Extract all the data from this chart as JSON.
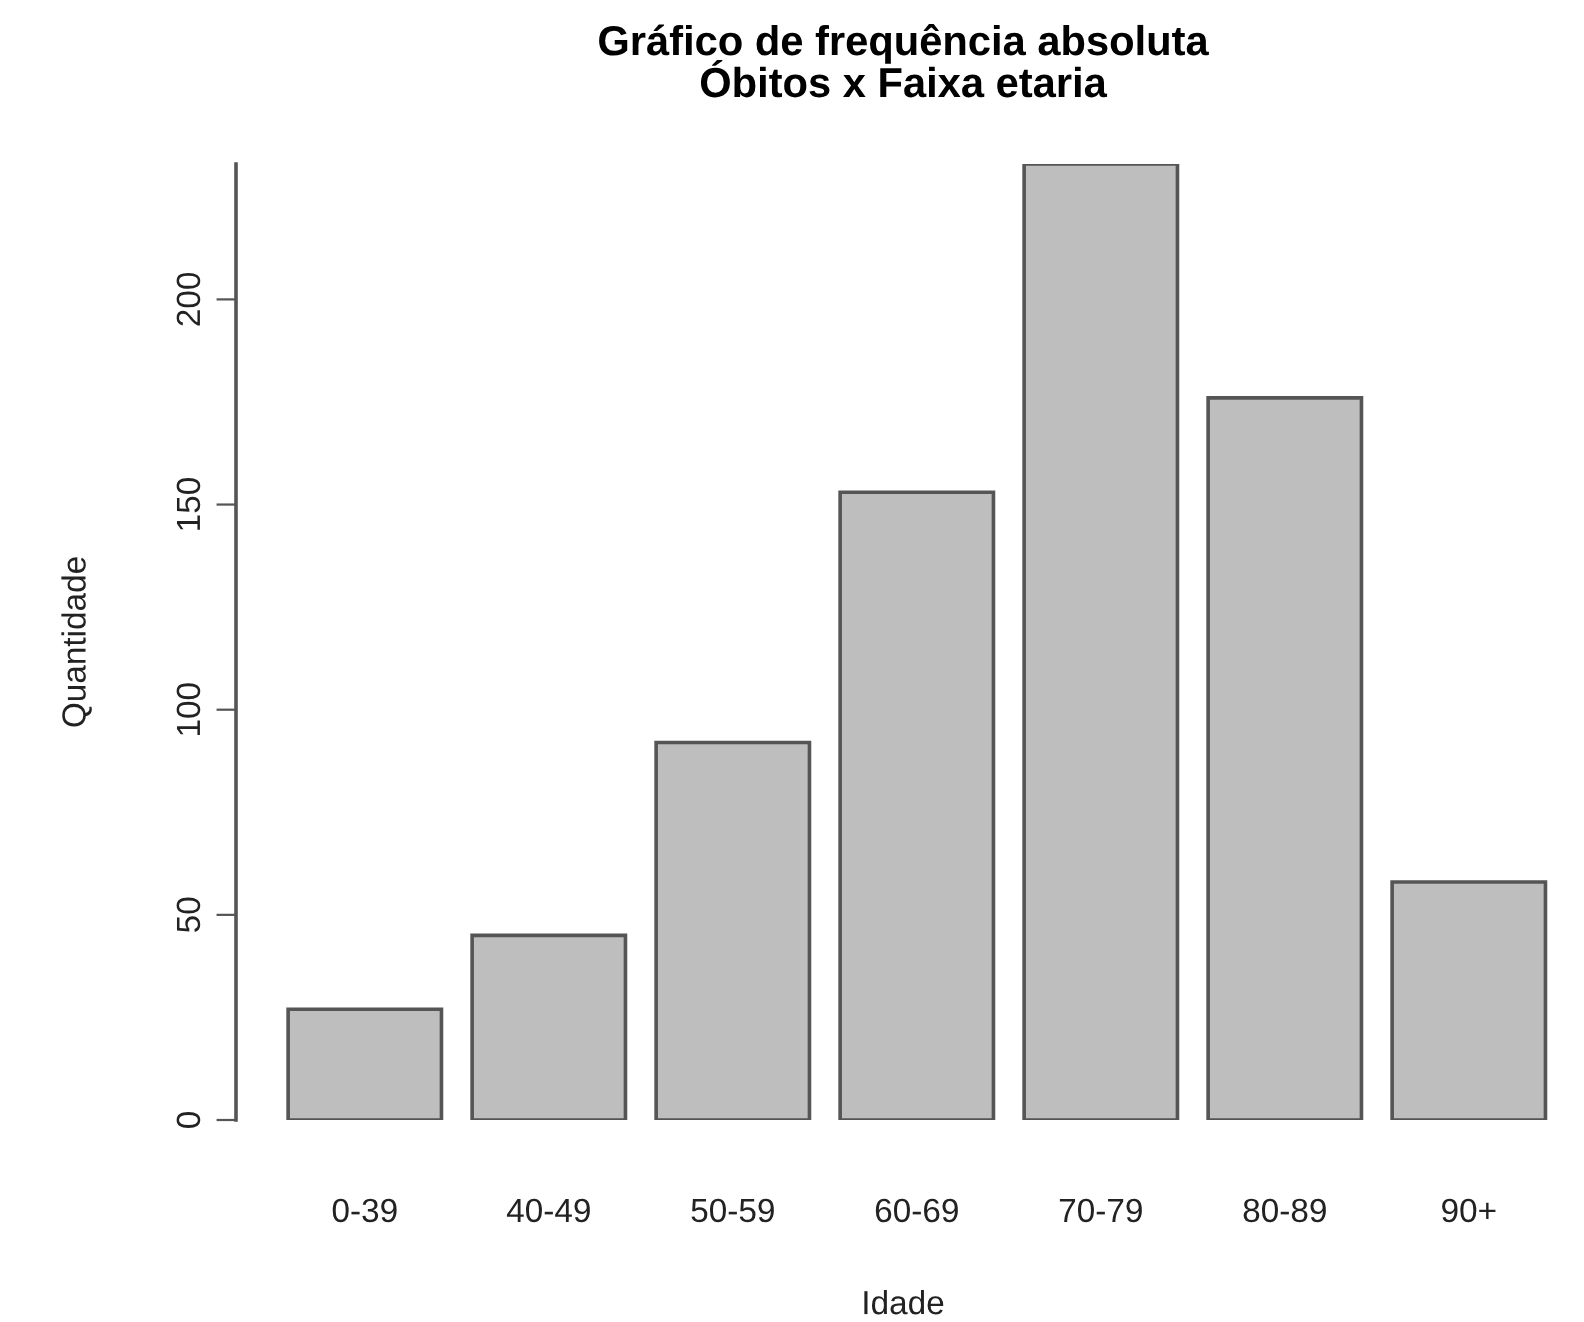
{
  "chart_data": {
    "type": "bar",
    "title": "Gráfico de frequência absoluta\nÓbitos x Faixa etaria",
    "xlabel": "Idade",
    "ylabel": "Quantidade",
    "categories": [
      "0-39",
      "40-49",
      "50-59",
      "60-69",
      "70-79",
      "80-89",
      "90+"
    ],
    "values": [
      27,
      45,
      92,
      153,
      233,
      176,
      58
    ],
    "color": "#bebebe",
    "ylim": [
      0,
      233
    ],
    "yticks": [
      0,
      50,
      100,
      150,
      200
    ],
    "grid": false
  }
}
